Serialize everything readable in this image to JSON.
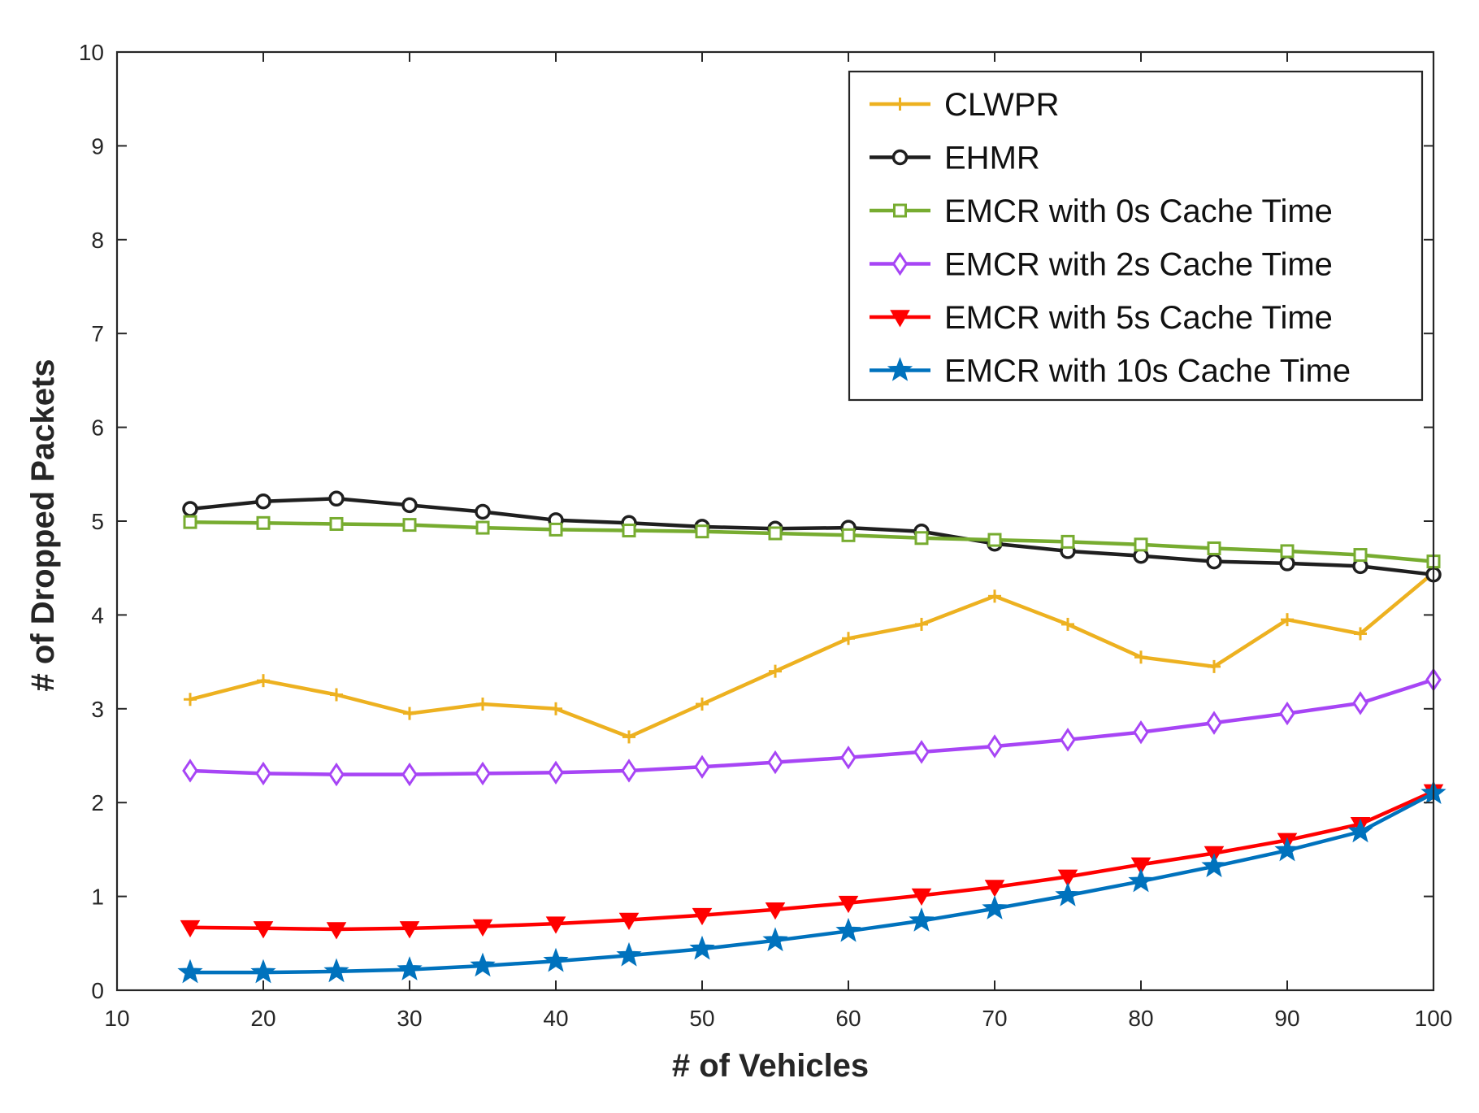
{
  "chart_data": {
    "type": "line",
    "xlabel": "# of Vehicles",
    "ylabel": "# of Dropped Packets",
    "xlim": [
      10,
      100
    ],
    "ylim": [
      0,
      10
    ],
    "xticks": [
      10,
      20,
      30,
      40,
      50,
      60,
      70,
      80,
      90,
      100
    ],
    "yticks": [
      0,
      1,
      2,
      3,
      4,
      5,
      6,
      7,
      8,
      9,
      10
    ],
    "grid": false,
    "legend_position": "top-right",
    "x": [
      15,
      20,
      25,
      30,
      35,
      40,
      45,
      50,
      55,
      60,
      65,
      70,
      75,
      80,
      85,
      90,
      95,
      100
    ],
    "series": [
      {
        "name": "CLWPR",
        "color": "#EDB120",
        "marker": "plus",
        "values": [
          3.1,
          3.3,
          3.15,
          2.95,
          3.05,
          3.0,
          2.7,
          3.05,
          3.4,
          3.75,
          3.9,
          4.2,
          3.9,
          3.55,
          3.45,
          3.95,
          3.8,
          4.45
        ]
      },
      {
        "name": "EHMR",
        "color": "#1F1F1F",
        "marker": "circle",
        "values": [
          5.13,
          5.21,
          5.24,
          5.17,
          5.1,
          5.01,
          4.98,
          4.94,
          4.92,
          4.93,
          4.89,
          4.76,
          4.68,
          4.63,
          4.57,
          4.55,
          4.52,
          4.43
        ]
      },
      {
        "name": "EMCR with 0s Cache Time",
        "color": "#77AC30",
        "marker": "square",
        "values": [
          4.99,
          4.98,
          4.97,
          4.96,
          4.93,
          4.91,
          4.9,
          4.89,
          4.87,
          4.85,
          4.82,
          4.8,
          4.78,
          4.75,
          4.71,
          4.68,
          4.64,
          4.57
        ]
      },
      {
        "name": "EMCR with 2s Cache Time",
        "color": "#A745F5",
        "marker": "diamond",
        "values": [
          2.34,
          2.31,
          2.3,
          2.3,
          2.31,
          2.32,
          2.34,
          2.38,
          2.43,
          2.48,
          2.54,
          2.6,
          2.67,
          2.75,
          2.85,
          2.95,
          3.06,
          3.31
        ]
      },
      {
        "name": "EMCR with 5s Cache Time",
        "color": "#FF0000",
        "marker": "triangle-down",
        "values": [
          0.67,
          0.66,
          0.65,
          0.66,
          0.68,
          0.71,
          0.75,
          0.8,
          0.86,
          0.93,
          1.01,
          1.1,
          1.21,
          1.34,
          1.46,
          1.6,
          1.77,
          2.12
        ]
      },
      {
        "name": "EMCR with 10s Cache Time",
        "color": "#0072BD",
        "marker": "star",
        "values": [
          0.19,
          0.19,
          0.2,
          0.22,
          0.26,
          0.31,
          0.37,
          0.44,
          0.53,
          0.63,
          0.74,
          0.87,
          1.01,
          1.16,
          1.32,
          1.49,
          1.69,
          2.1
        ]
      }
    ]
  }
}
